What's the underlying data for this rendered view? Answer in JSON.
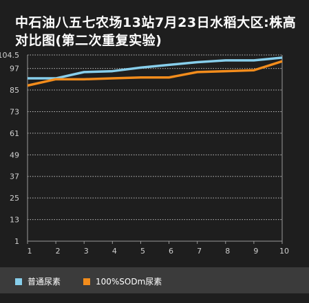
{
  "chart_data": {
    "type": "line",
    "title": "中石油八五七农场13站7月23日水稻大区:株高对比图(第二次重复实验)",
    "x": [
      1,
      2,
      3,
      4,
      5,
      6,
      7,
      8,
      9,
      10
    ],
    "y_ticks": [
      "104.5",
      "97",
      "85",
      "73",
      "61",
      "49",
      "37",
      "25",
      "13",
      "1"
    ],
    "ylim": [
      1,
      104.5
    ],
    "grid": true,
    "legend_position": "bottom",
    "series": [
      {
        "name": "普通尿素",
        "color": "#87ceeb",
        "values": [
          91.5,
          91.5,
          95,
          95.5,
          97.5,
          99,
          100.5,
          101.5,
          101.5,
          103
        ]
      },
      {
        "name": "100%SODm尿素",
        "color": "#f28c1c",
        "values": [
          87.5,
          91,
          91,
          91.5,
          92,
          92,
          95,
          95.5,
          96,
          101
        ]
      }
    ]
  }
}
